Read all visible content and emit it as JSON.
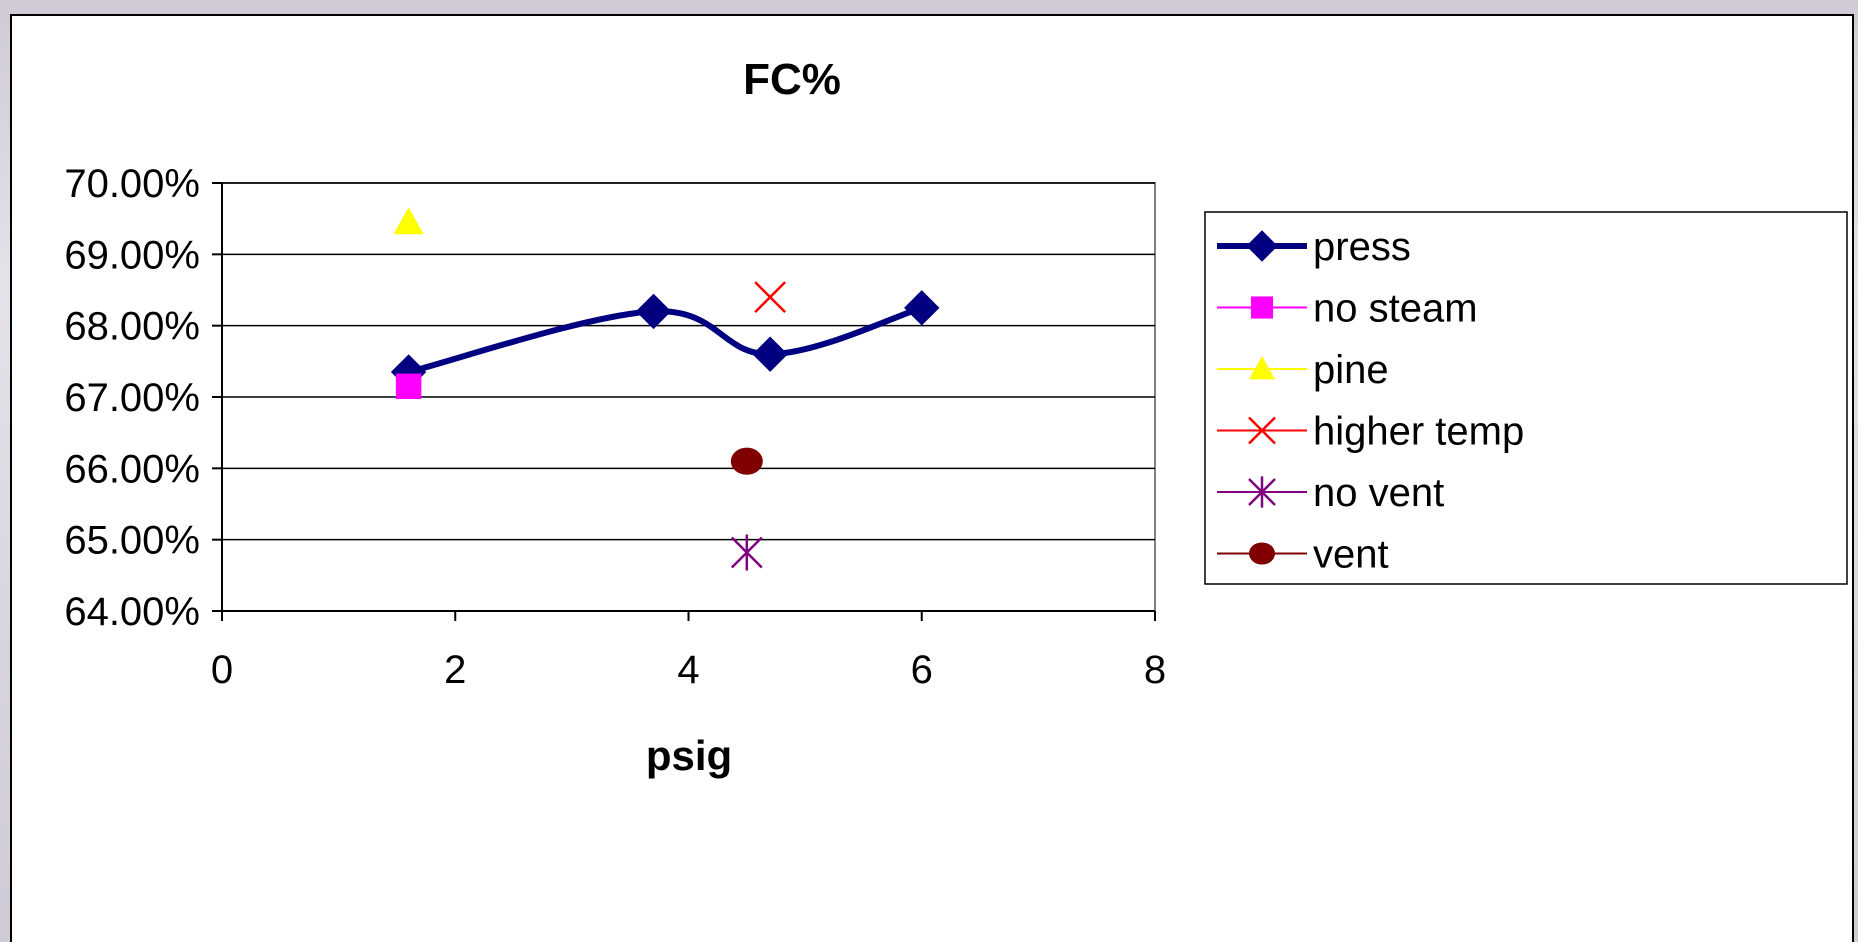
{
  "chart_data": {
    "type": "scatter",
    "title": "FC%",
    "xlabel": "psig",
    "ylabel": "",
    "xlim": [
      0,
      8
    ],
    "ylim": [
      0.64,
      0.7
    ],
    "x_ticks": [
      0,
      2,
      4,
      6,
      8
    ],
    "y_ticks": [
      0.64,
      0.65,
      0.66,
      0.67,
      0.68,
      0.69,
      0.7
    ],
    "y_tick_labels": [
      "64.00%",
      "65.00%",
      "66.00%",
      "67.00%",
      "68.00%",
      "69.00%",
      "70.00%"
    ],
    "x_tick_labels": [
      "0",
      "2",
      "4",
      "6",
      "8"
    ],
    "grid": "horizontal major gridlines",
    "legend_position": "right",
    "series": [
      {
        "name": "press",
        "marker": "diamond",
        "color": "#000080",
        "line": "smooth",
        "points": [
          [
            1.6,
            0.6735
          ],
          [
            3.7,
            0.682
          ],
          [
            4.7,
            0.676
          ],
          [
            6.0,
            0.6825
          ]
        ]
      },
      {
        "name": "no steam",
        "marker": "square",
        "color": "#FF00FF",
        "line": "none",
        "points": [
          [
            1.6,
            0.6715
          ]
        ]
      },
      {
        "name": "pine",
        "marker": "triangle",
        "color": "#FFFF00",
        "line": "none",
        "points": [
          [
            1.6,
            0.6945
          ]
        ]
      },
      {
        "name": "higher temp",
        "marker": "x",
        "color": "#FF0000",
        "line": "none",
        "points": [
          [
            4.7,
            0.684
          ]
        ]
      },
      {
        "name": "no vent",
        "marker": "star",
        "color": "#800080",
        "line": "none",
        "points": [
          [
            4.5,
            0.6482
          ]
        ]
      },
      {
        "name": "vent",
        "marker": "circle",
        "color": "#800000",
        "line": "none",
        "points": [
          [
            4.5,
            0.661
          ]
        ]
      }
    ]
  }
}
